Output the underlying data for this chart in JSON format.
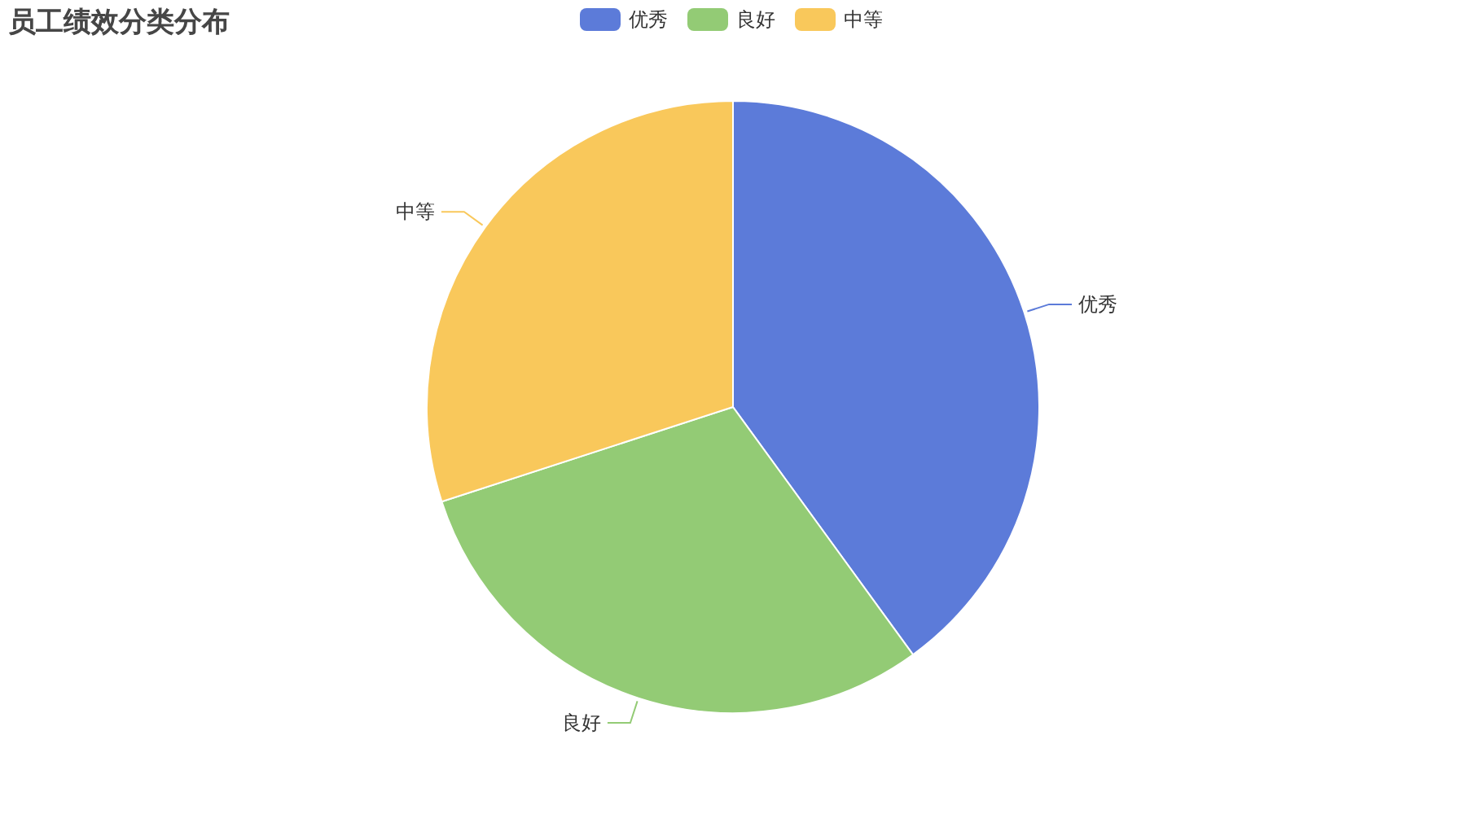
{
  "chart_data": {
    "type": "pie",
    "title": "员工绩效分类分布",
    "categories": [
      "优秀",
      "良好",
      "中等"
    ],
    "values": [
      40,
      30,
      30
    ],
    "colors": [
      "#5c7bd9",
      "#93cb75",
      "#f9c85b"
    ],
    "legend": "top"
  }
}
